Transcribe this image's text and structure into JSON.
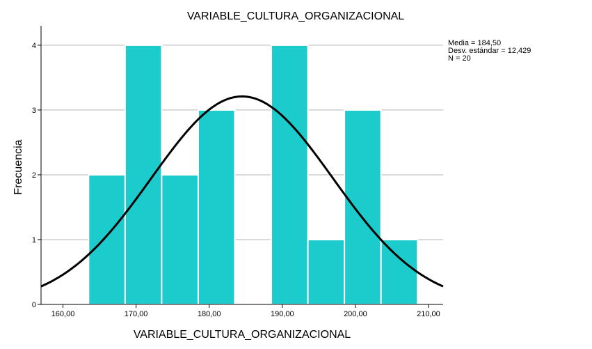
{
  "chart_data": {
    "type": "bar",
    "subtype": "histogram",
    "title": "VARIABLE_CULTURA_ORGANIZACIONAL",
    "xlabel": "VARIABLE_CULTURA_ORGANIZACIONAL",
    "ylabel": "Frecuencia",
    "xlim": [
      157.0,
      212.0
    ],
    "ylim": [
      0,
      4.3
    ],
    "x_ticks": [
      160,
      170,
      180,
      190,
      200,
      210
    ],
    "x_tick_labels": [
      "160,00",
      "170,00",
      "180,00",
      "190,00",
      "200,00",
      "210,00"
    ],
    "y_ticks": [
      0,
      1,
      2,
      3,
      4
    ],
    "y_tick_labels": [
      "0",
      "1",
      "2",
      "3",
      "4"
    ],
    "grid": {
      "horizontal": true,
      "vertical": false
    },
    "bins": [
      {
        "start": 163.5,
        "end": 168.5,
        "count": 2
      },
      {
        "start": 168.5,
        "end": 173.5,
        "count": 4
      },
      {
        "start": 173.5,
        "end": 178.5,
        "count": 2
      },
      {
        "start": 178.5,
        "end": 183.5,
        "count": 3
      },
      {
        "start": 183.5,
        "end": 188.5,
        "count": 0
      },
      {
        "start": 188.5,
        "end": 193.5,
        "count": 4
      },
      {
        "start": 193.5,
        "end": 198.5,
        "count": 1
      },
      {
        "start": 198.5,
        "end": 203.5,
        "count": 3
      },
      {
        "start": 203.5,
        "end": 208.5,
        "count": 1
      }
    ],
    "normal_curve": {
      "mean": 184.5,
      "sd": 12.429,
      "n": 20,
      "bin_width": 5
    },
    "stats_text": [
      "Media = 184,50",
      "Desv. estándar = 12,429",
      "N = 20"
    ],
    "stats_placement": "top-right",
    "colors": {
      "bar": "#1ccccc",
      "bar_edge": "#ffffff",
      "curve": "#000000",
      "grid": "#b4b4b4",
      "axis": "#000000"
    }
  }
}
